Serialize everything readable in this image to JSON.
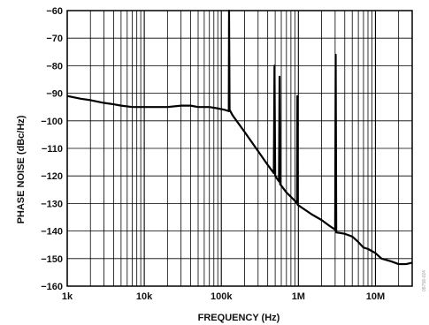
{
  "chart_data": {
    "type": "line",
    "xscale": "log",
    "xlim": [
      1000,
      30000000
    ],
    "ylim": [
      -160,
      -60
    ],
    "grid": true,
    "xlabel": "FREQUENCY (Hz)",
    "ylabel": "PHASE NOISE (dBc/Hz)",
    "xtick_values": [
      1000,
      10000,
      100000,
      1000000,
      10000000
    ],
    "xtick_labels": [
      "1k",
      "10k",
      "100k",
      "1M",
      "10M"
    ],
    "ytick_values": [
      -60,
      -70,
      -80,
      -90,
      -100,
      -110,
      -120,
      -130,
      -140,
      -150,
      -160
    ],
    "ytick_labels": [
      "−60",
      "−70",
      "−80",
      "−90",
      "−100",
      "−110",
      "−120",
      "−130",
      "−140",
      "−150",
      "−160"
    ],
    "series": [
      {
        "points": [
          [
            1000,
            -91
          ],
          [
            1500,
            -92
          ],
          [
            2000,
            -92.5
          ],
          [
            3000,
            -93.5
          ],
          [
            4000,
            -94
          ],
          [
            5000,
            -94.5
          ],
          [
            7000,
            -95
          ],
          [
            10000,
            -95
          ],
          [
            15000,
            -95
          ],
          [
            20000,
            -95
          ],
          [
            30000,
            -94.5
          ],
          [
            40000,
            -94.5
          ],
          [
            50000,
            -95
          ],
          [
            70000,
            -95
          ],
          [
            90000,
            -95.5
          ],
          [
            110000,
            -96
          ],
          [
            125000,
            -96.5
          ],
          [
            126000,
            -60
          ],
          [
            128000,
            -96
          ],
          [
            140000,
            -98
          ],
          [
            200000,
            -104
          ],
          [
            300000,
            -111
          ],
          [
            400000,
            -116
          ],
          [
            480000,
            -119
          ],
          [
            490000,
            -80
          ],
          [
            500000,
            -120
          ],
          [
            560000,
            -122
          ],
          [
            570000,
            -84
          ],
          [
            580000,
            -123
          ],
          [
            700000,
            -126
          ],
          [
            900000,
            -129
          ],
          [
            960000,
            -130
          ],
          [
            970000,
            -91
          ],
          [
            980000,
            -130.5
          ],
          [
            1500000,
            -134
          ],
          [
            2000000,
            -136
          ],
          [
            2500000,
            -138
          ],
          [
            3000000,
            -139.5
          ],
          [
            3050000,
            -76
          ],
          [
            3100000,
            -140.5
          ],
          [
            4000000,
            -141
          ],
          [
            5000000,
            -142
          ],
          [
            6000000,
            -144
          ],
          [
            7000000,
            -146
          ],
          [
            8000000,
            -146.5
          ],
          [
            10000000,
            -148
          ],
          [
            12000000,
            -150
          ],
          [
            16000000,
            -151
          ],
          [
            20000000,
            -152
          ],
          [
            25000000,
            -152
          ],
          [
            30000000,
            -151.5
          ]
        ]
      }
    ]
  },
  "side_id": "09758-024"
}
